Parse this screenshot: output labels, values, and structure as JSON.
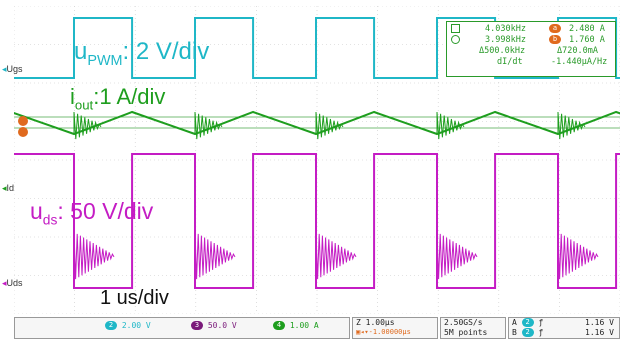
{
  "screen": {
    "background": "#ffffff",
    "grid_color": "#c8c8c8"
  },
  "channels": {
    "ugs": {
      "label": "Ugs",
      "color": "#1fb7c7"
    },
    "id": {
      "label": "Id",
      "color": "#1e9e1e"
    },
    "uds": {
      "label": "Uds",
      "color": "#c41cc4"
    }
  },
  "annotations": {
    "upwm_main": "u",
    "upwm_sub": "PWM",
    "upwm_rest": ": 2 V/div",
    "iout_main": "i",
    "iout_sub": "out",
    "iout_rest": ":1 A/div",
    "uds_main": "u",
    "uds_sub": "ds",
    "uds_rest": ": 50 V/div",
    "timebase": "1 us/div"
  },
  "measurements": {
    "freq1": "4.030kHz",
    "freq2": "3.998kHz",
    "dfreq": "Δ500.0kHz",
    "didt_label": "dI/dt",
    "cur_a": "2.480 A",
    "cur_b": "1.760 A",
    "dcur": "Δ720.0mA",
    "didt": "-1.440μA/Hz",
    "cursor_a": "a",
    "cursor_b": "b"
  },
  "status": {
    "ch2_num": "2",
    "ch2_scale": "2.00 V",
    "ch3_num": "3",
    "ch3_scale": "50.0 V",
    "ch4_num": "4",
    "ch4_scale": "1.00 A",
    "timebase": "1.00μs",
    "delay": "-1.00000μs",
    "sample_rate": "2.50GS/s",
    "points": "5M points",
    "trig_a_label": "A",
    "trig_a_ch": "2",
    "trig_a_level": "1.16 V",
    "trig_b_label": "B",
    "trig_b_ch": "2",
    "trig_b_level": "1.16 V"
  }
}
